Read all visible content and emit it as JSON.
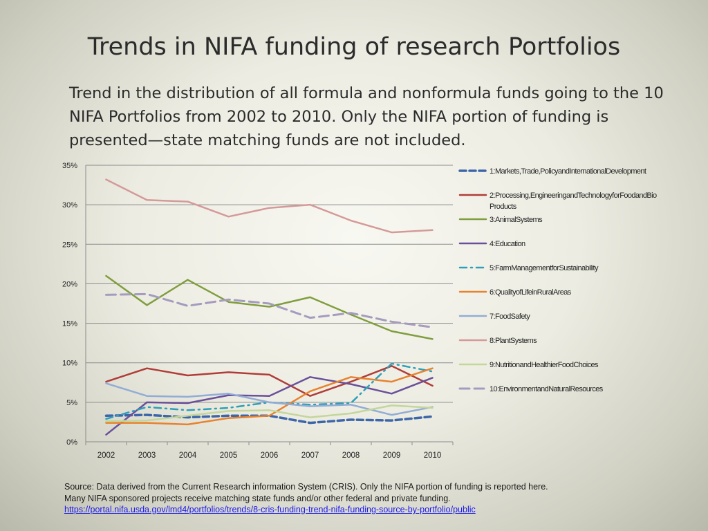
{
  "title": "Trends in NIFA funding of research Portfolios",
  "subtitle": "Trend in the distribution of all formula and nonformula funds going to the 10 NIFA Portfolios from 2002 to 2010.  Only the NIFA portion of funding is presented—state matching funds are not included.",
  "source": {
    "line1": "Source:  Data derived from the Current Research information System (CRIS).   Only the NIFA portion of funding is reported here.",
    "line2": "Many NIFA sponsored projects receive matching state funds and/or other federal and private funding.",
    "link": "https://portal.nifa.usda.gov/lmd4/portfolios/trends/8-cris-funding-trend-nifa-funding-source-by-portfolio/public"
  },
  "chart_data": {
    "type": "line",
    "x": [
      "2002",
      "2003",
      "2004",
      "2005",
      "2006",
      "2007",
      "2008",
      "2009",
      "2010"
    ],
    "ylim": [
      0,
      35
    ],
    "yticks": [
      "0%",
      "5%",
      "10%",
      "15%",
      "20%",
      "25%",
      "30%",
      "35%"
    ],
    "grid": true,
    "legend_position": "right",
    "series": [
      {
        "name": "1:Markets,Trade,PolicyandInternationalDevelopment",
        "color": "#3d66a8",
        "dash": "dash-thick",
        "values": [
          3.3,
          3.4,
          3.1,
          3.3,
          3.3,
          2.4,
          2.8,
          2.7,
          3.2
        ]
      },
      {
        "name": "2:Processing,EngineeringandTechnologyforFoodandBio Products",
        "color": "#b03c38",
        "dash": "solid",
        "values": [
          7.6,
          9.3,
          8.4,
          8.8,
          8.5,
          5.8,
          7.6,
          9.6,
          7.1
        ]
      },
      {
        "name": "3:AnimalSystems",
        "color": "#7f9e3e",
        "dash": "solid",
        "values": [
          21.0,
          17.3,
          20.5,
          17.7,
          17.1,
          18.3,
          16.1,
          14.0,
          13.0
        ]
      },
      {
        "name": "4:Education",
        "color": "#6a4f9a",
        "dash": "solid",
        "values": [
          0.9,
          5.0,
          4.9,
          5.9,
          5.8,
          8.2,
          7.3,
          6.1,
          8.1
        ]
      },
      {
        "name": "5:FarmManagementforSustainability",
        "color": "#2e9fb8",
        "dash": "dashdot",
        "values": [
          2.9,
          4.4,
          4.0,
          4.3,
          5.0,
          4.7,
          4.9,
          9.9,
          8.9
        ]
      },
      {
        "name": "6:QualityofLifeinRuralAreas",
        "color": "#e8822f",
        "dash": "solid",
        "values": [
          2.4,
          2.4,
          2.2,
          3.0,
          3.3,
          6.4,
          8.2,
          7.6,
          9.3
        ]
      },
      {
        "name": "7:FoodSafety",
        "color": "#93acd6",
        "dash": "solid",
        "values": [
          7.4,
          5.8,
          5.7,
          6.1,
          5.0,
          4.5,
          4.7,
          3.4,
          4.4
        ]
      },
      {
        "name": "8:PlantSystems",
        "color": "#d49a99",
        "dash": "solid",
        "values": [
          33.2,
          30.6,
          30.4,
          28.5,
          29.6,
          30.0,
          28.0,
          26.5,
          26.8
        ]
      },
      {
        "name": "9:NutritionandHealthierFoodChoices",
        "color": "#c3d69b",
        "dash": "solid",
        "values": [
          2.6,
          2.7,
          3.3,
          3.9,
          4.0,
          3.1,
          3.6,
          4.6,
          4.3
        ]
      },
      {
        "name": "10:EnvironmentandNaturalResources",
        "color": "#a59bbf",
        "dash": "dash",
        "values": [
          18.6,
          18.7,
          17.2,
          18.0,
          17.5,
          15.7,
          16.3,
          15.2,
          14.5
        ]
      }
    ]
  }
}
